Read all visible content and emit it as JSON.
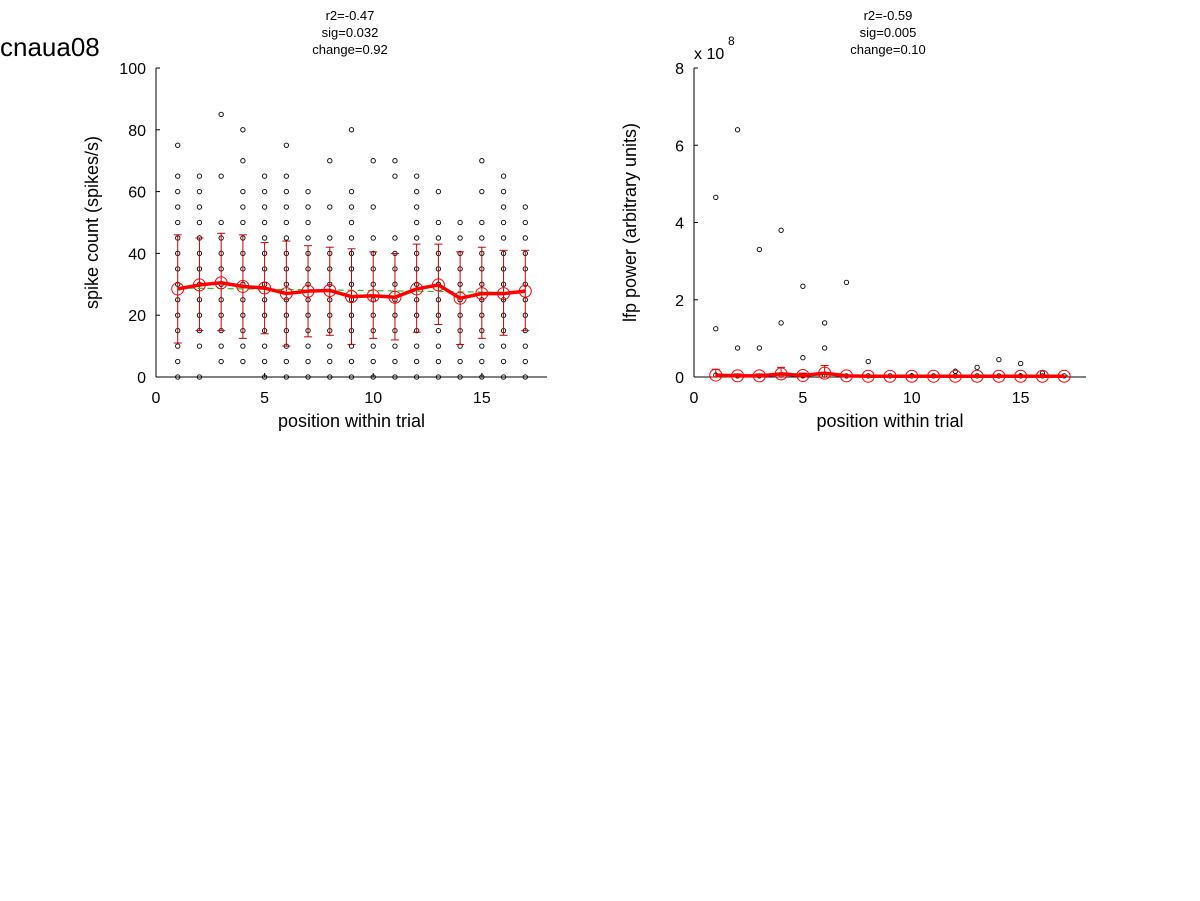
{
  "figure": {
    "title": "cnaua08"
  },
  "colors": {
    "raw": "#000000",
    "mean": "#ff0000",
    "errorbar": "#cc0000",
    "fit": "#33bb33"
  },
  "chart_data": [
    {
      "type": "scatter",
      "stats": [
        "r2=-0.47",
        "sig=0.032",
        "change=0.92"
      ],
      "xlabel": "position within trial",
      "ylabel": "spike count (spikes/s)",
      "exponent_label": "",
      "xlim": [
        0,
        18
      ],
      "ylim": [
        0,
        100
      ],
      "xticks": [
        0,
        5,
        10,
        15
      ],
      "yticks": [
        0,
        20,
        40,
        60,
        80,
        100
      ],
      "raw_points": [
        {
          "x": 1,
          "y": [
            0,
            5,
            10,
            15,
            20,
            25,
            30,
            35,
            40,
            45,
            50,
            55,
            60,
            65,
            75
          ]
        },
        {
          "x": 2,
          "y": [
            0,
            10,
            15,
            20,
            25,
            30,
            35,
            40,
            45,
            50,
            55,
            60,
            65
          ]
        },
        {
          "x": 3,
          "y": [
            5,
            10,
            15,
            20,
            25,
            30,
            35,
            40,
            45,
            50,
            65,
            85
          ]
        },
        {
          "x": 4,
          "y": [
            5,
            10,
            15,
            20,
            25,
            30,
            35,
            40,
            45,
            50,
            55,
            60,
            70,
            80
          ]
        },
        {
          "x": 5,
          "y": [
            0,
            5,
            10,
            15,
            20,
            25,
            30,
            35,
            40,
            45,
            50,
            55,
            60,
            65
          ]
        },
        {
          "x": 6,
          "y": [
            0,
            5,
            10,
            15,
            20,
            25,
            30,
            35,
            40,
            45,
            50,
            55,
            60,
            65,
            75
          ]
        },
        {
          "x": 7,
          "y": [
            0,
            5,
            10,
            15,
            20,
            25,
            30,
            35,
            40,
            45,
            50,
            55,
            60
          ]
        },
        {
          "x": 8,
          "y": [
            0,
            5,
            10,
            15,
            20,
            25,
            30,
            35,
            40,
            45,
            55,
            70
          ]
        },
        {
          "x": 9,
          "y": [
            0,
            5,
            10,
            15,
            20,
            25,
            30,
            35,
            40,
            45,
            50,
            55,
            60,
            80
          ]
        },
        {
          "x": 10,
          "y": [
            0,
            5,
            10,
            15,
            20,
            25,
            30,
            35,
            40,
            45,
            55,
            70
          ]
        },
        {
          "x": 11,
          "y": [
            0,
            5,
            10,
            15,
            20,
            25,
            30,
            35,
            40,
            45,
            65,
            70
          ]
        },
        {
          "x": 12,
          "y": [
            0,
            5,
            10,
            15,
            20,
            25,
            30,
            35,
            40,
            45,
            50,
            55,
            60,
            65
          ]
        },
        {
          "x": 13,
          "y": [
            0,
            5,
            10,
            15,
            20,
            25,
            30,
            35,
            40,
            45,
            50,
            60
          ]
        },
        {
          "x": 14,
          "y": [
            0,
            5,
            10,
            15,
            20,
            25,
            30,
            35,
            40,
            45,
            50
          ]
        },
        {
          "x": 15,
          "y": [
            0,
            5,
            10,
            15,
            20,
            25,
            30,
            35,
            40,
            45,
            50,
            60,
            70
          ]
        },
        {
          "x": 16,
          "y": [
            0,
            5,
            10,
            15,
            20,
            25,
            30,
            35,
            40,
            45,
            50,
            55,
            60,
            65
          ]
        },
        {
          "x": 17,
          "y": [
            0,
            5,
            10,
            15,
            20,
            25,
            30,
            35,
            40,
            45,
            50,
            55
          ]
        }
      ],
      "mean": {
        "x": [
          1,
          2,
          3,
          4,
          5,
          6,
          7,
          8,
          9,
          10,
          11,
          12,
          13,
          14,
          15,
          16,
          17
        ],
        "y": [
          28.5,
          29.8,
          30.5,
          29.3,
          28.8,
          27.0,
          27.8,
          28.0,
          26.0,
          26.3,
          25.8,
          28.5,
          29.8,
          25.5,
          27.0,
          27.0,
          27.8
        ],
        "err_low": [
          11.0,
          15.0,
          15.0,
          12.5,
          14.0,
          10.0,
          13.0,
          13.5,
          10.5,
          12.5,
          12.0,
          14.5,
          17.0,
          10.5,
          12.5,
          13.5,
          15.0
        ],
        "err_high": [
          46.0,
          45.0,
          46.5,
          46.0,
          43.5,
          44.0,
          42.5,
          42.0,
          41.5,
          40.5,
          40.0,
          43.0,
          43.0,
          40.5,
          42.0,
          41.0,
          41.0
        ]
      },
      "fit": {
        "x": [
          1,
          17
        ],
        "y": [
          28.8,
          27.3
        ]
      }
    },
    {
      "type": "scatter",
      "stats": [
        "r2=-0.59",
        "sig=0.005",
        "change=0.10"
      ],
      "xlabel": "position within trial",
      "ylabel": "lfp power (arbitrary units)",
      "exponent_label": "x 10",
      "exponent_sup": "8",
      "xlim": [
        0,
        18
      ],
      "ylim": [
        0,
        8
      ],
      "xticks": [
        0,
        5,
        10,
        15
      ],
      "yticks": [
        0,
        2,
        4,
        6,
        8
      ],
      "raw_points": [
        {
          "x": 1,
          "y": [
            0.05,
            1.25,
            4.65
          ]
        },
        {
          "x": 2,
          "y": [
            0.03,
            0.75,
            6.4
          ]
        },
        {
          "x": 3,
          "y": [
            0.03,
            0.75,
            3.3
          ]
        },
        {
          "x": 4,
          "y": [
            0.05,
            1.4,
            3.8
          ]
        },
        {
          "x": 5,
          "y": [
            0.03,
            0.5,
            2.35
          ]
        },
        {
          "x": 6,
          "y": [
            0.05,
            0.75,
            1.4
          ]
        },
        {
          "x": 7,
          "y": [
            0.03,
            2.45
          ]
        },
        {
          "x": 8,
          "y": [
            0.03,
            0.4
          ]
        },
        {
          "x": 9,
          "y": [
            0.03
          ]
        },
        {
          "x": 10,
          "y": [
            0.03
          ]
        },
        {
          "x": 11,
          "y": [
            0.03
          ]
        },
        {
          "x": 12,
          "y": [
            0.03,
            0.15
          ]
        },
        {
          "x": 13,
          "y": [
            0.03,
            0.25
          ]
        },
        {
          "x": 14,
          "y": [
            0.03,
            0.45
          ]
        },
        {
          "x": 15,
          "y": [
            0.03,
            0.35
          ]
        },
        {
          "x": 16,
          "y": [
            0.03,
            0.1
          ]
        },
        {
          "x": 17,
          "y": [
            0.03
          ]
        }
      ],
      "mean": {
        "x": [
          1,
          2,
          3,
          4,
          5,
          6,
          7,
          8,
          9,
          10,
          11,
          12,
          13,
          14,
          15,
          16,
          17
        ],
        "y": [
          0.05,
          0.03,
          0.03,
          0.08,
          0.04,
          0.1,
          0.03,
          0.02,
          0.02,
          0.02,
          0.02,
          0.02,
          0.02,
          0.02,
          0.02,
          0.02,
          0.02
        ],
        "err_low": [
          0.0,
          0.0,
          0.0,
          0.0,
          0.0,
          0.0,
          0.0,
          0.0,
          0.0,
          0.0,
          0.0,
          0.0,
          0.0,
          0.0,
          0.0,
          0.0,
          0.0
        ],
        "err_high": [
          0.2,
          0.08,
          0.08,
          0.25,
          0.1,
          0.3,
          0.05,
          0.04,
          0.03,
          0.03,
          0.03,
          0.05,
          0.05,
          0.05,
          0.05,
          0.04,
          0.03
        ]
      },
      "fit": {
        "x": [
          1,
          17
        ],
        "y": [
          0.06,
          0.02
        ]
      }
    }
  ]
}
